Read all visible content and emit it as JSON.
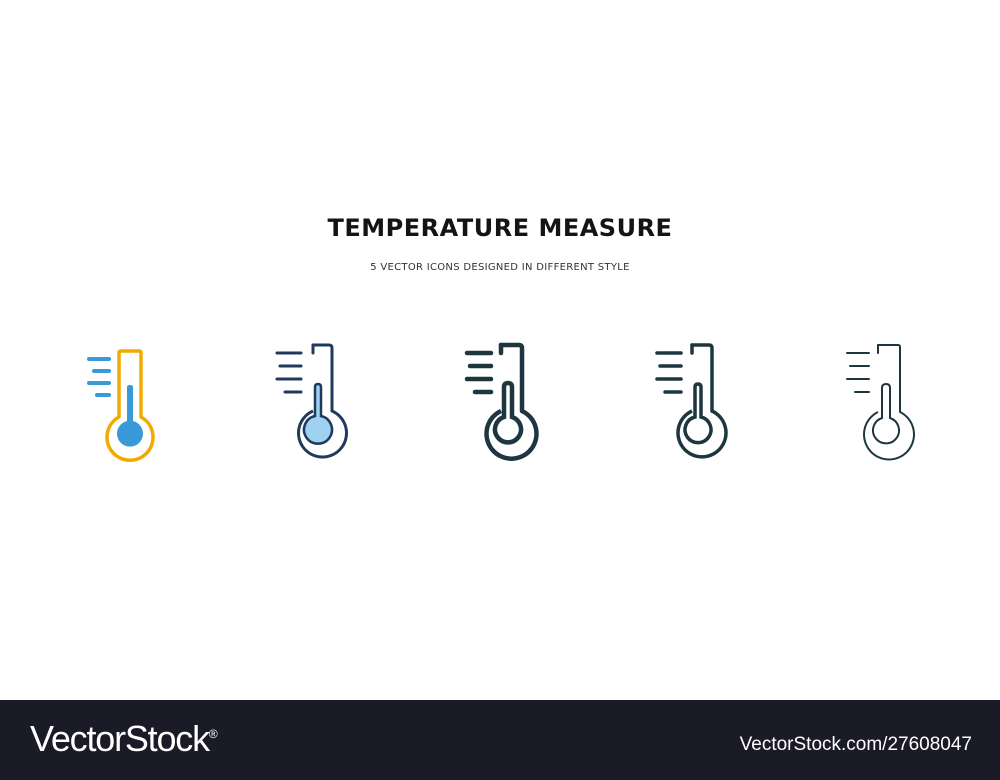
{
  "header": {
    "title": "TEMPERATURE MEASURE",
    "subtitle": "5 VECTOR ICONS DESIGNED IN DIFFERENT STYLE"
  },
  "icons": [
    {
      "name": "thermometer-icon",
      "style": "colored outline",
      "colors": {
        "outline": "#f2a900",
        "fill": "#3a9ad9",
        "lines": "#3a9ad9"
      }
    },
    {
      "name": "thermometer-icon",
      "style": "filled outline",
      "colors": {
        "outline": "#1f3a5f",
        "fill": "#9fd2f0",
        "lines": "#1f3a5f"
      }
    },
    {
      "name": "thermometer-icon",
      "style": "bold line",
      "colors": {
        "outline": "#1d3640"
      }
    },
    {
      "name": "thermometer-icon",
      "style": "line",
      "colors": {
        "outline": "#1d3640"
      }
    },
    {
      "name": "thermometer-icon",
      "style": "thin line",
      "colors": {
        "outline": "#1d3640"
      }
    }
  ],
  "footer": {
    "logo_text": "VectorStock",
    "logo_mark": "®",
    "stock_id": "VectorStock.com/27608047"
  }
}
